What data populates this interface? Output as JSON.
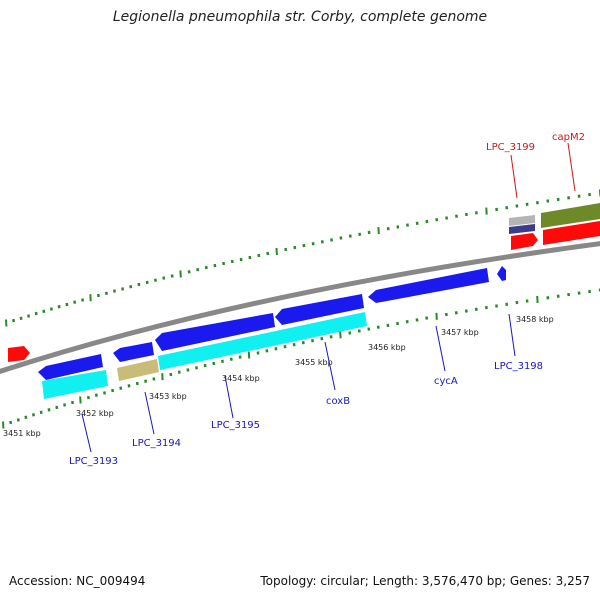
{
  "title": "Legionella pneumophila str. Corby, complete genome",
  "accession": "Accession: NC_009494",
  "stats": "Topology: circular; Length: 3,576,470 bp; Genes: 3,257",
  "colors": {
    "backbone": "#888888",
    "tick": "#2a8a2a",
    "forward_label": "#d01818",
    "reverse_label": "#1818c0",
    "blue_cds": "#1a1aee",
    "cyan_cds": "#10f0f0",
    "khaki_cds": "#c8bc78",
    "red_cds": "#ff0a0a",
    "olive_cds": "#6e8a28",
    "gray_cds": "#b4b4b4",
    "navy_cds": "#3c3c8c"
  },
  "ticks": [
    {
      "label": "3451 kbp"
    },
    {
      "label": "3452 kbp"
    },
    {
      "label": "3453 kbp"
    },
    {
      "label": "3454 kbp"
    },
    {
      "label": "3455 kbp"
    },
    {
      "label": "3456 kbp"
    },
    {
      "label": "3457 kbp"
    },
    {
      "label": "3458 kbp"
    }
  ],
  "gene_labels": [
    {
      "text": "LPC_3199",
      "strand": "forward"
    },
    {
      "text": "capM2",
      "strand": "forward"
    },
    {
      "text": "LPC_3193",
      "strand": "reverse"
    },
    {
      "text": "LPC_3194",
      "strand": "reverse"
    },
    {
      "text": "LPC_3195",
      "strand": "reverse"
    },
    {
      "text": "coxB",
      "strand": "reverse"
    },
    {
      "text": "cycA",
      "strand": "reverse"
    },
    {
      "text": "LPC_3198",
      "strand": "reverse"
    }
  ]
}
